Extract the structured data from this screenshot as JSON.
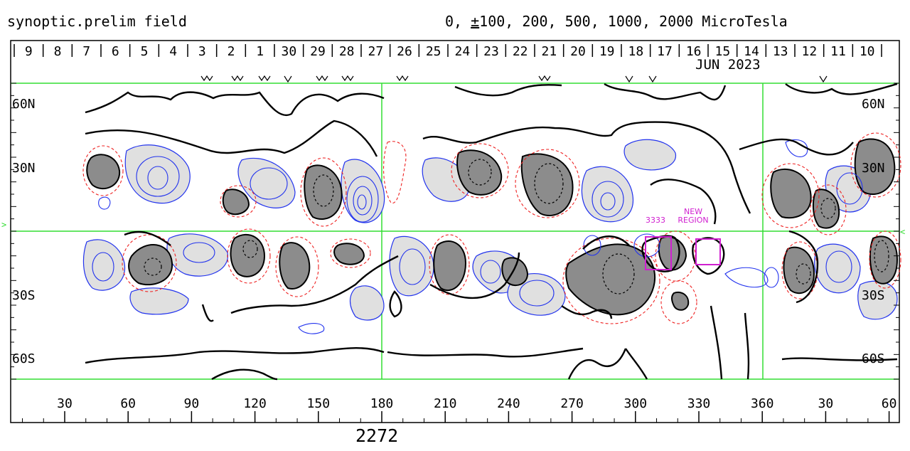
{
  "header": {
    "title": "synoptic.prelim field",
    "levels_prefix": "0, ",
    "levels_pm": "±",
    "levels_rest": "100, 200, 500, 1000, 2000 MicroTesla"
  },
  "rotation_number": "2272",
  "date_row": {
    "days": [
      "9",
      "8",
      "7",
      "6",
      "5",
      "4",
      "3",
      "2",
      "1",
      "30",
      "29",
      "28",
      "27",
      "26",
      "25",
      "24",
      "23",
      "22",
      "21",
      "20",
      "19",
      "18",
      "17",
      "16",
      "15",
      "14",
      "13",
      "12",
      "11",
      "10"
    ],
    "month_label": "JUN 2023"
  },
  "longitude_ticks": [
    "30",
    "60",
    "90",
    "120",
    "150",
    "180",
    "210",
    "240",
    "270",
    "300",
    "330",
    "360",
    "30",
    "60"
  ],
  "latitude_labels": {
    "left": [
      "60N",
      "30N",
      "30S",
      "60S"
    ],
    "right": [
      "60N",
      "30N",
      "30S",
      "60S"
    ]
  },
  "regions": [
    {
      "label": "3333",
      "color": "#d020d0"
    },
    {
      "label": "NEW\nREGION",
      "color": "#d020d0"
    }
  ],
  "colors": {
    "grid": "#33dd33",
    "positive": "#2233ee",
    "negative": "#ee2222",
    "neutral_line": "#000000",
    "positive_fill": "#e0e0e0",
    "negative_fill": "#8c8c8c",
    "region_box": "#d020d0"
  }
}
